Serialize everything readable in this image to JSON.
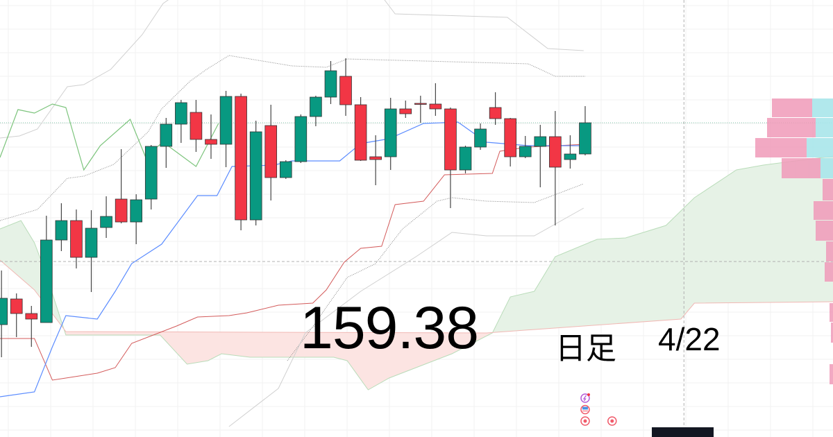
{
  "overlay": {
    "price": "159.38",
    "timeframe": "日足",
    "date": "4/22"
  },
  "colors": {
    "up": "#089981",
    "down": "#f23645",
    "conversion": "#5b8cff",
    "base": "#d35a5a",
    "lagging": "#7cc47c",
    "cloud_up": "#e6f2e6",
    "cloud_down": "#fce4e2",
    "vp_up": "#a8e6ea",
    "vp_down": "#f09ab8",
    "price_line": "#7fc4a8"
  },
  "chart_data": {
    "type": "candlestick",
    "title": "",
    "xlim": [
      -0.1,
      55.56
    ],
    "ylim": [
      150.32,
      162.92
    ],
    "grid": true,
    "last_price": 159.38,
    "candles": [
      [
        153.56,
        155.12,
        152.62,
        154.32
      ],
      [
        154.3,
        154.46,
        153.2,
        153.88
      ],
      [
        153.88,
        154.1,
        152.92,
        153.72
      ],
      [
        153.62,
        156.7,
        153.62,
        156.0
      ],
      [
        156.0,
        157.06,
        155.68,
        156.56
      ],
      [
        156.56,
        156.88,
        155.18,
        155.5
      ],
      [
        155.5,
        156.86,
        154.5,
        156.34
      ],
      [
        156.36,
        157.26,
        156.06,
        156.68
      ],
      [
        157.18,
        158.62,
        156.48,
        156.52
      ],
      [
        156.52,
        157.32,
        155.88,
        157.16
      ],
      [
        157.18,
        158.74,
        156.88,
        158.7
      ],
      [
        158.7,
        159.52,
        158.08,
        159.34
      ],
      [
        159.34,
        160.04,
        158.8,
        159.96
      ],
      [
        159.68,
        160.04,
        158.54,
        158.9
      ],
      [
        158.9,
        159.62,
        158.34,
        158.76
      ],
      [
        158.76,
        160.3,
        158.1,
        160.14
      ],
      [
        160.14,
        160.22,
        156.28,
        156.58
      ],
      [
        156.58,
        159.44,
        156.42,
        159.12
      ],
      [
        159.3,
        159.9,
        157.14,
        157.8
      ],
      [
        157.8,
        158.3,
        157.76,
        158.26
      ],
      [
        158.26,
        159.62,
        158.22,
        159.56
      ],
      [
        159.56,
        160.16,
        159.28,
        160.12
      ],
      [
        160.12,
        161.16,
        159.92,
        160.88
      ],
      [
        160.72,
        161.24,
        159.58,
        159.9
      ],
      [
        159.9,
        160.12,
        158.28,
        158.3
      ],
      [
        158.4,
        159.02,
        157.58,
        158.32
      ],
      [
        158.4,
        160.1,
        158.02,
        159.78
      ],
      [
        159.78,
        160.02,
        159.52,
        159.64
      ],
      [
        159.94,
        160.16,
        159.38,
        159.92
      ],
      [
        159.92,
        160.52,
        159.58,
        159.78
      ],
      [
        159.78,
        159.82,
        156.92,
        158.02
      ],
      [
        158.02,
        158.72,
        157.92,
        158.68
      ],
      [
        158.68,
        159.36,
        158.6,
        159.2
      ],
      [
        159.82,
        160.26,
        159.32,
        159.5
      ],
      [
        159.5,
        159.52,
        158.12,
        158.4
      ],
      [
        158.4,
        159.0,
        158.36,
        158.7
      ],
      [
        158.7,
        159.32,
        157.52,
        158.98
      ],
      [
        158.98,
        159.72,
        156.42,
        158.1
      ],
      [
        158.32,
        159.02,
        158.06,
        158.48
      ],
      [
        158.48,
        159.86,
        158.44,
        159.38
      ]
    ],
    "candle_fields": [
      "open",
      "high",
      "low",
      "close"
    ],
    "ichimoku": {
      "conversion": [
        [
          -0.1,
          151.48
        ],
        [
          2.2,
          151.62
        ],
        [
          3.4,
          152.92
        ],
        [
          4.3,
          153.82
        ],
        [
          6.4,
          153.72
        ],
        [
          7.6,
          154.52
        ],
        [
          8.7,
          155.32
        ],
        [
          10.7,
          155.88
        ],
        [
          13.1,
          157.28
        ],
        [
          14.4,
          157.28
        ],
        [
          15.4,
          158.12
        ],
        [
          18.2,
          158.16
        ],
        [
          19.4,
          158.28
        ],
        [
          22.6,
          158.28
        ],
        [
          24.0,
          158.78
        ],
        [
          25.9,
          158.92
        ],
        [
          28.2,
          159.36
        ],
        [
          30.5,
          159.4
        ],
        [
          32.4,
          158.82
        ],
        [
          35.2,
          158.72
        ],
        [
          39,
          158.72
        ]
      ],
      "base": [
        [
          -0.1,
          153.16
        ],
        [
          2.2,
          153.16
        ],
        [
          3.4,
          151.96
        ],
        [
          4.3,
          152.02
        ],
        [
          6.4,
          152.16
        ],
        [
          7.6,
          152.32
        ],
        [
          8.7,
          153.02
        ],
        [
          11.7,
          153.52
        ],
        [
          13.1,
          153.78
        ],
        [
          15.2,
          153.82
        ],
        [
          16.4,
          153.9
        ],
        [
          18.5,
          154.12
        ],
        [
          20.8,
          154.18
        ],
        [
          21.7,
          154.56
        ],
        [
          22.9,
          155.36
        ],
        [
          24.0,
          155.76
        ],
        [
          25.4,
          155.82
        ],
        [
          26.3,
          157.02
        ],
        [
          28.2,
          157.12
        ],
        [
          29.6,
          157.88
        ],
        [
          32.8,
          157.92
        ],
        [
          33.3,
          158.56
        ],
        [
          35.2,
          158.68
        ],
        [
          39,
          158.76
        ]
      ],
      "lagging": [
        [
          -0.1,
          158.38
        ],
        [
          1.1,
          159.76
        ],
        [
          2.2,
          159.66
        ],
        [
          3.4,
          159.92
        ],
        [
          4.3,
          159.82
        ],
        [
          5.5,
          158.02
        ],
        [
          6.6,
          158.72
        ],
        [
          8.6,
          159.48
        ],
        [
          9.6,
          158.42
        ],
        [
          10.8,
          158.82
        ],
        [
          13.0,
          158.12
        ],
        [
          14.5,
          159.36
        ]
      ],
      "span_a": [
        [
          -0.1,
          156.32
        ],
        [
          1.3,
          156.56
        ],
        [
          2.2,
          155.92
        ],
        [
          2.9,
          155.12
        ],
        [
          4.3,
          153.26
        ],
        [
          10.6,
          153.26
        ],
        [
          12.4,
          152.42
        ],
        [
          13.8,
          152.52
        ],
        [
          14.7,
          152.72
        ],
        [
          16.6,
          152.62
        ],
        [
          22.2,
          152.62
        ],
        [
          23.1,
          152.52
        ],
        [
          24.5,
          151.68
        ],
        [
          25.9,
          152.02
        ],
        [
          30.1,
          152.72
        ],
        [
          32.8,
          153.32
        ],
        [
          34.0,
          154.36
        ],
        [
          35.6,
          154.52
        ],
        [
          37.0,
          155.52
        ],
        [
          39.8,
          156.02
        ],
        [
          41.7,
          156.06
        ],
        [
          44.4,
          156.42
        ],
        [
          46.3,
          157.22
        ],
        [
          49.1,
          158.02
        ],
        [
          50.9,
          158.16
        ],
        [
          55.6,
          158.42
        ]
      ],
      "span_b": [
        [
          -0.1,
          155.42
        ],
        [
          2.2,
          154.56
        ],
        [
          4.3,
          153.36
        ],
        [
          32.4,
          153.32
        ],
        [
          45.4,
          153.72
        ],
        [
          46.3,
          154.18
        ],
        [
          55.6,
          154.22
        ]
      ]
    },
    "bands": {
      "upper_outer": [
        [
          -0.1,
          158.94
        ],
        [
          1.2,
          159.0
        ],
        [
          2.4,
          159.2
        ],
        [
          4.4,
          160.42
        ],
        [
          5.5,
          160.48
        ],
        [
          7.3,
          160.92
        ],
        [
          9.4,
          161.92
        ],
        [
          10.8,
          162.82
        ],
        [
          13.8,
          163.72
        ],
        [
          23.1,
          163.72
        ],
        [
          25.6,
          162.92
        ],
        [
          26.3,
          162.52
        ],
        [
          33.8,
          162.42
        ],
        [
          36.5,
          161.52
        ],
        [
          38.9,
          161.46
        ]
      ],
      "upper": [
        [
          -0.1,
          156.56
        ],
        [
          2.4,
          156.88
        ],
        [
          4.4,
          157.78
        ],
        [
          5.5,
          157.84
        ],
        [
          7.5,
          158.18
        ],
        [
          9.8,
          159.12
        ],
        [
          10.7,
          159.78
        ],
        [
          12.6,
          160.58
        ],
        [
          13.7,
          160.92
        ],
        [
          15.2,
          161.32
        ],
        [
          19.4,
          161.02
        ],
        [
          21.7,
          160.98
        ],
        [
          23.1,
          161.22
        ],
        [
          35.2,
          161.08
        ],
        [
          37.0,
          160.72
        ],
        [
          39,
          160.72
        ]
      ],
      "lower": [
        [
          19.1,
          152.52
        ],
        [
          20.6,
          153.38
        ],
        [
          23.1,
          154.92
        ],
        [
          25.0,
          155.32
        ],
        [
          26.8,
          156.32
        ],
        [
          29.1,
          157.12
        ],
        [
          30.1,
          157.22
        ],
        [
          32.4,
          157.12
        ],
        [
          35.6,
          157.08
        ],
        [
          38.9,
          157.62
        ]
      ],
      "lower_outer": [
        [
          15.2,
          150.62
        ],
        [
          18.5,
          151.72
        ],
        [
          20.3,
          153.32
        ],
        [
          24.0,
          154.52
        ],
        [
          27.7,
          155.52
        ],
        [
          30.1,
          156.22
        ],
        [
          32.4,
          156.12
        ],
        [
          35.6,
          156.12
        ],
        [
          38.9,
          156.92
        ]
      ]
    },
    "volume_profile": [
      {
        "low": 159.52,
        "high": 160.08,
        "down": 58,
        "up": 30
      },
      {
        "low": 158.94,
        "high": 159.52,
        "down": 70,
        "up": 25
      },
      {
        "low": 158.36,
        "high": 158.94,
        "down": 74,
        "up": 38
      },
      {
        "low": 157.76,
        "high": 158.36,
        "down": 56,
        "up": 18
      },
      {
        "low": 157.12,
        "high": 157.76,
        "down": 15,
        "up": 0
      },
      {
        "low": 156.56,
        "high": 157.12,
        "down": 28,
        "up": 0
      },
      {
        "low": 155.96,
        "high": 156.56,
        "down": 25,
        "up": 0
      },
      {
        "low": 155.36,
        "high": 155.96,
        "down": 10,
        "up": 0
      },
      {
        "low": 154.78,
        "high": 155.36,
        "down": 12,
        "up": 0
      },
      {
        "low": 153.62,
        "high": 154.18,
        "down": 5,
        "up": 0
      },
      {
        "low": 153.02,
        "high": 153.62,
        "down": 3,
        "up": 0
      },
      {
        "low": 151.82,
        "high": 152.42,
        "down": 5,
        "up": 0
      }
    ],
    "reference_lines": {
      "price": 159.38,
      "dashed_level": 155.38,
      "vertical_bar": 45.6
    },
    "events": [
      {
        "bar": 39,
        "icons": [
          "lightning-icon",
          "us-flag-icon",
          "event-dot-icon"
        ]
      },
      {
        "bar": 40.8,
        "icons": [
          "event-dot-icon"
        ]
      }
    ]
  }
}
